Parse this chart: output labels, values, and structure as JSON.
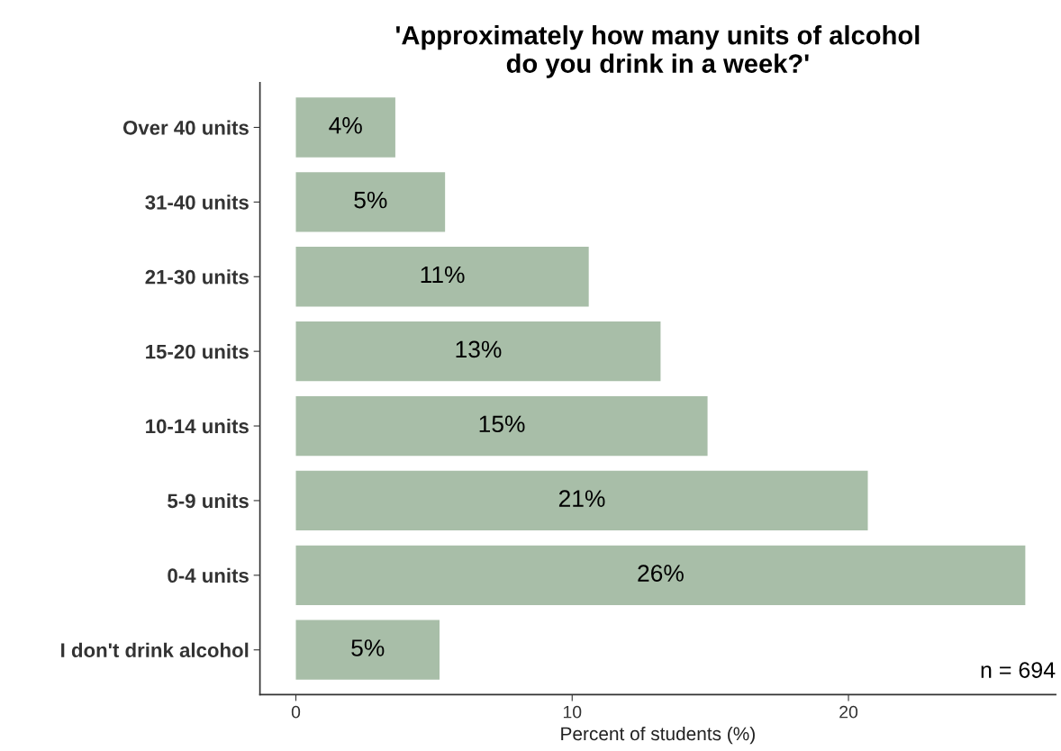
{
  "chart_data": {
    "type": "bar",
    "orientation": "horizontal",
    "title": "'Approximately how many units of alcohol\ndo you drink in a week?'",
    "xlabel": "Percent of students (%)",
    "categories": [
      "Over 40 units",
      "31-40 units",
      "21-30 units",
      "15-20 units",
      "10-14 units",
      "5-9 units",
      "0-4 units",
      "I don't drink alcohol"
    ],
    "values": [
      3.6,
      5.4,
      10.6,
      13.2,
      14.9,
      20.7,
      26.4,
      5.2
    ],
    "value_labels": [
      "4%",
      "5%",
      "11%",
      "13%",
      "15%",
      "21%",
      "26%",
      "5%"
    ],
    "color": "#a8bea8",
    "xlim": [
      -1.3,
      27.5
    ],
    "xticks": [
      0,
      10,
      20
    ],
    "grid": false,
    "annotations": [
      "n = 694"
    ]
  }
}
